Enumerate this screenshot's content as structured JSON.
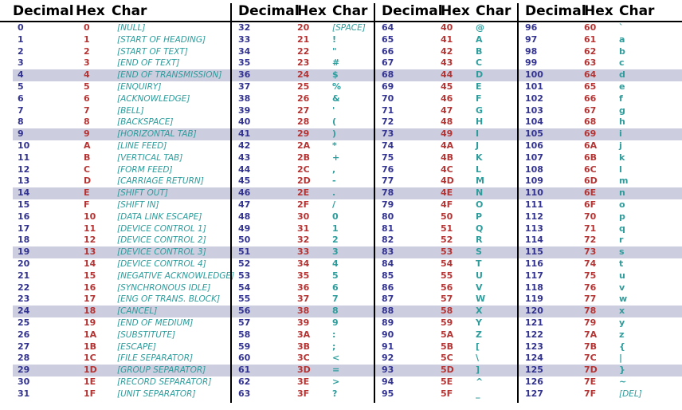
{
  "page": {
    "background": "#ffffff"
  },
  "table": {
    "column_headers": [
      "Decimal",
      "Hex",
      "Char"
    ],
    "colors": {
      "decimal_text": "#333391",
      "hex_text": "#b43434",
      "char_text": "#2f9c9c",
      "highlight_bg": "#cccddf",
      "rule": "#000000"
    },
    "highlight_row_indices": [
      4,
      9,
      14,
      19,
      24,
      29
    ],
    "groups": [
      {
        "rows": [
          {
            "d": "0",
            "h": "0",
            "c": "[NULL]",
            "s": "c"
          },
          {
            "d": "1",
            "h": "1",
            "c": "[START OF HEADING]",
            "s": "c"
          },
          {
            "d": "2",
            "h": "2",
            "c": "[START OF TEXT]",
            "s": "c"
          },
          {
            "d": "3",
            "h": "3",
            "c": "[END OF TEXT]",
            "s": "c"
          },
          {
            "d": "4",
            "h": "4",
            "c": "[END OF TRANSMISSION]",
            "s": "c"
          },
          {
            "d": "5",
            "h": "5",
            "c": "[ENQUIRY]",
            "s": "c"
          },
          {
            "d": "6",
            "h": "6",
            "c": "[ACKNOWLEDGE]",
            "s": "c"
          },
          {
            "d": "7",
            "h": "7",
            "c": "[BELL]",
            "s": "c"
          },
          {
            "d": "8",
            "h": "8",
            "c": "[BACKSPACE]",
            "s": "c"
          },
          {
            "d": "9",
            "h": "9",
            "c": "[HORIZONTAL TAB]",
            "s": "c"
          },
          {
            "d": "10",
            "h": "A",
            "c": "[LINE FEED]",
            "s": "c"
          },
          {
            "d": "11",
            "h": "B",
            "c": "[VERTICAL TAB]",
            "s": "c"
          },
          {
            "d": "12",
            "h": "C",
            "c": "[FORM FEED]",
            "s": "c"
          },
          {
            "d": "13",
            "h": "D",
            "c": "[CARRIAGE RETURN]",
            "s": "c"
          },
          {
            "d": "14",
            "h": "E",
            "c": "[SHIFT OUT]",
            "s": "c"
          },
          {
            "d": "15",
            "h": "F",
            "c": "[SHIFT IN]",
            "s": "c"
          },
          {
            "d": "16",
            "h": "10",
            "c": "[DATA LINK ESCAPE]",
            "s": "c"
          },
          {
            "d": "17",
            "h": "11",
            "c": "[DEVICE CONTROL 1]",
            "s": "c"
          },
          {
            "d": "18",
            "h": "12",
            "c": "[DEVICE CONTROL 2]",
            "s": "c"
          },
          {
            "d": "19",
            "h": "13",
            "c": "[DEVICE CONTROL 3]",
            "s": "c"
          },
          {
            "d": "20",
            "h": "14",
            "c": "[DEVICE CONTROL 4]",
            "s": "c"
          },
          {
            "d": "21",
            "h": "15",
            "c": "[NEGATIVE ACKNOWLEDGE]",
            "s": "c"
          },
          {
            "d": "22",
            "h": "16",
            "c": "[SYNCHRONOUS IDLE]",
            "s": "c"
          },
          {
            "d": "23",
            "h": "17",
            "c": "[ENG OF TRANS. BLOCK]",
            "s": "c"
          },
          {
            "d": "24",
            "h": "18",
            "c": "[CANCEL]",
            "s": "c"
          },
          {
            "d": "25",
            "h": "19",
            "c": "[END OF MEDIUM]",
            "s": "c"
          },
          {
            "d": "26",
            "h": "1A",
            "c": "[SUBSTITUTE]",
            "s": "c"
          },
          {
            "d": "27",
            "h": "1B",
            "c": "[ESCAPE]",
            "s": "c"
          },
          {
            "d": "28",
            "h": "1C",
            "c": "[FILE SEPARATOR]",
            "s": "c"
          },
          {
            "d": "29",
            "h": "1D",
            "c": "[GROUP SEPARATOR]",
            "s": "c"
          },
          {
            "d": "30",
            "h": "1E",
            "c": "[RECORD SEPARATOR]",
            "s": "c"
          },
          {
            "d": "31",
            "h": "1F",
            "c": "[UNIT SEPARATOR]",
            "s": "c"
          }
        ]
      },
      {
        "rows": [
          {
            "d": "32",
            "h": "20",
            "c": "[SPACE]",
            "s": "c"
          },
          {
            "d": "33",
            "h": "21",
            "c": "!"
          },
          {
            "d": "34",
            "h": "22",
            "c": "\""
          },
          {
            "d": "35",
            "h": "23",
            "c": "#"
          },
          {
            "d": "36",
            "h": "24",
            "c": "$"
          },
          {
            "d": "37",
            "h": "25",
            "c": "%"
          },
          {
            "d": "38",
            "h": "26",
            "c": "&"
          },
          {
            "d": "39",
            "h": "27",
            "c": "'"
          },
          {
            "d": "40",
            "h": "28",
            "c": "("
          },
          {
            "d": "41",
            "h": "29",
            "c": ")"
          },
          {
            "d": "42",
            "h": "2A",
            "c": "*"
          },
          {
            "d": "43",
            "h": "2B",
            "c": "+"
          },
          {
            "d": "44",
            "h": "2C",
            "c": ","
          },
          {
            "d": "45",
            "h": "2D",
            "c": "-"
          },
          {
            "d": "46",
            "h": "2E",
            "c": "."
          },
          {
            "d": "47",
            "h": "2F",
            "c": "/"
          },
          {
            "d": "48",
            "h": "30",
            "c": "0"
          },
          {
            "d": "49",
            "h": "31",
            "c": "1"
          },
          {
            "d": "50",
            "h": "32",
            "c": "2"
          },
          {
            "d": "51",
            "h": "33",
            "c": "3"
          },
          {
            "d": "52",
            "h": "34",
            "c": "4"
          },
          {
            "d": "53",
            "h": "35",
            "c": "5"
          },
          {
            "d": "54",
            "h": "36",
            "c": "6"
          },
          {
            "d": "55",
            "h": "37",
            "c": "7"
          },
          {
            "d": "56",
            "h": "38",
            "c": "8"
          },
          {
            "d": "57",
            "h": "39",
            "c": "9"
          },
          {
            "d": "58",
            "h": "3A",
            "c": ":"
          },
          {
            "d": "59",
            "h": "3B",
            "c": ";"
          },
          {
            "d": "60",
            "h": "3C",
            "c": "<"
          },
          {
            "d": "61",
            "h": "3D",
            "c": "="
          },
          {
            "d": "62",
            "h": "3E",
            "c": ">"
          },
          {
            "d": "63",
            "h": "3F",
            "c": "?"
          }
        ]
      },
      {
        "rows": [
          {
            "d": "64",
            "h": "40",
            "c": "@"
          },
          {
            "d": "65",
            "h": "41",
            "c": "A"
          },
          {
            "d": "66",
            "h": "42",
            "c": "B"
          },
          {
            "d": "67",
            "h": "43",
            "c": "C"
          },
          {
            "d": "68",
            "h": "44",
            "c": "D"
          },
          {
            "d": "69",
            "h": "45",
            "c": "E"
          },
          {
            "d": "70",
            "h": "46",
            "c": "F"
          },
          {
            "d": "71",
            "h": "47",
            "c": "G"
          },
          {
            "d": "72",
            "h": "48",
            "c": "H"
          },
          {
            "d": "73",
            "h": "49",
            "c": "I"
          },
          {
            "d": "74",
            "h": "4A",
            "c": "J"
          },
          {
            "d": "75",
            "h": "4B",
            "c": "K"
          },
          {
            "d": "76",
            "h": "4C",
            "c": "L"
          },
          {
            "d": "77",
            "h": "4D",
            "c": "M"
          },
          {
            "d": "78",
            "h": "4E",
            "c": "N"
          },
          {
            "d": "79",
            "h": "4F",
            "c": "O"
          },
          {
            "d": "80",
            "h": "50",
            "c": "P"
          },
          {
            "d": "81",
            "h": "51",
            "c": "Q"
          },
          {
            "d": "82",
            "h": "52",
            "c": "R"
          },
          {
            "d": "83",
            "h": "53",
            "c": "S"
          },
          {
            "d": "84",
            "h": "54",
            "c": "T"
          },
          {
            "d": "85",
            "h": "55",
            "c": "U"
          },
          {
            "d": "86",
            "h": "56",
            "c": "V"
          },
          {
            "d": "87",
            "h": "57",
            "c": "W"
          },
          {
            "d": "88",
            "h": "58",
            "c": "X"
          },
          {
            "d": "89",
            "h": "59",
            "c": "Y"
          },
          {
            "d": "90",
            "h": "5A",
            "c": "Z"
          },
          {
            "d": "91",
            "h": "5B",
            "c": "["
          },
          {
            "d": "92",
            "h": "5C",
            "c": "\\"
          },
          {
            "d": "93",
            "h": "5D",
            "c": "]"
          },
          {
            "d": "94",
            "h": "5E",
            "c": "^"
          },
          {
            "d": "95",
            "h": "5F",
            "c": "_"
          }
        ]
      },
      {
        "rows": [
          {
            "d": "96",
            "h": "60",
            "c": "`"
          },
          {
            "d": "97",
            "h": "61",
            "c": "a"
          },
          {
            "d": "98",
            "h": "62",
            "c": "b"
          },
          {
            "d": "99",
            "h": "63",
            "c": "c"
          },
          {
            "d": "100",
            "h": "64",
            "c": "d"
          },
          {
            "d": "101",
            "h": "65",
            "c": "e"
          },
          {
            "d": "102",
            "h": "66",
            "c": "f"
          },
          {
            "d": "103",
            "h": "67",
            "c": "g"
          },
          {
            "d": "104",
            "h": "68",
            "c": "h"
          },
          {
            "d": "105",
            "h": "69",
            "c": "i"
          },
          {
            "d": "106",
            "h": "6A",
            "c": "j"
          },
          {
            "d": "107",
            "h": "6B",
            "c": "k"
          },
          {
            "d": "108",
            "h": "6C",
            "c": "l"
          },
          {
            "d": "109",
            "h": "6D",
            "c": "m"
          },
          {
            "d": "110",
            "h": "6E",
            "c": "n"
          },
          {
            "d": "111",
            "h": "6F",
            "c": "o"
          },
          {
            "d": "112",
            "h": "70",
            "c": "p"
          },
          {
            "d": "113",
            "h": "71",
            "c": "q"
          },
          {
            "d": "114",
            "h": "72",
            "c": "r"
          },
          {
            "d": "115",
            "h": "73",
            "c": "s"
          },
          {
            "d": "116",
            "h": "74",
            "c": "t"
          },
          {
            "d": "117",
            "h": "75",
            "c": "u"
          },
          {
            "d": "118",
            "h": "76",
            "c": "v"
          },
          {
            "d": "119",
            "h": "77",
            "c": "w"
          },
          {
            "d": "120",
            "h": "78",
            "c": "x"
          },
          {
            "d": "121",
            "h": "79",
            "c": "y"
          },
          {
            "d": "122",
            "h": "7A",
            "c": "z"
          },
          {
            "d": "123",
            "h": "7B",
            "c": "{"
          },
          {
            "d": "124",
            "h": "7C",
            "c": "|"
          },
          {
            "d": "125",
            "h": "7D",
            "c": "}"
          },
          {
            "d": "126",
            "h": "7E",
            "c": "~"
          },
          {
            "d": "127",
            "h": "7F",
            "c": "[DEL]",
            "s": "c"
          }
        ]
      }
    ]
  }
}
